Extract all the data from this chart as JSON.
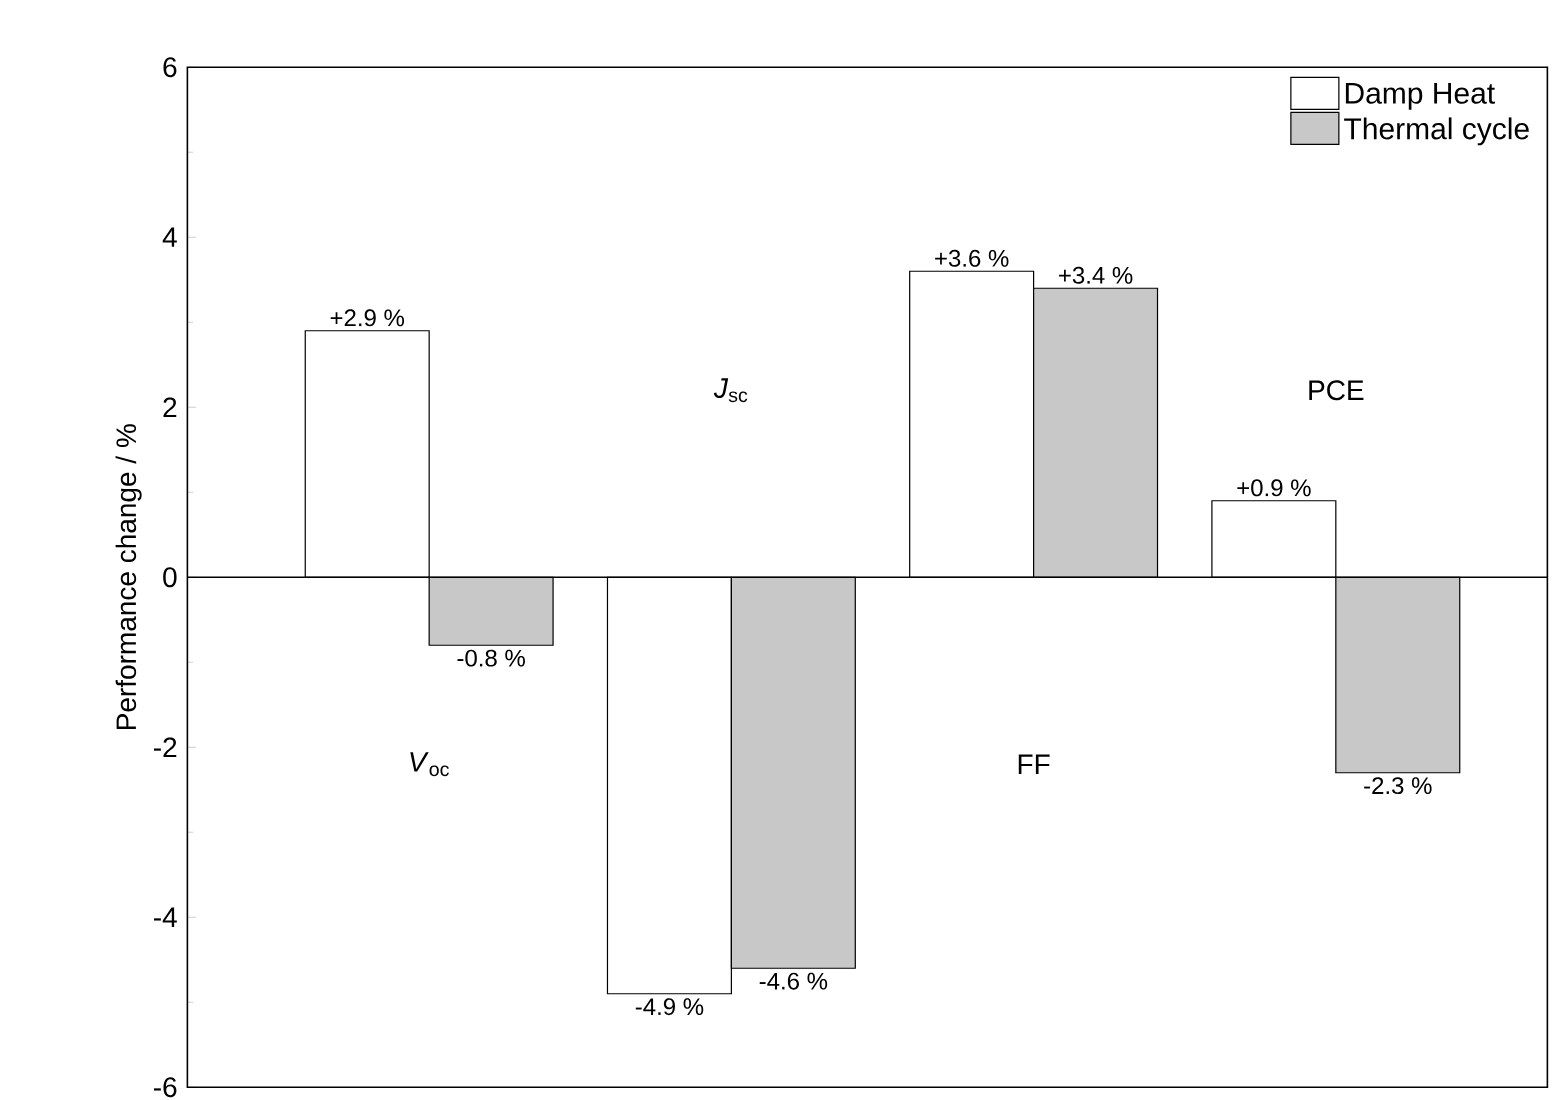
{
  "chart_data": {
    "type": "bar",
    "ylabel": "Performance change / %",
    "categories": [
      "*V*$_{oc}$",
      "*J*$_{sc}$",
      "FF",
      "PCE"
    ],
    "series": [
      {
        "name": "Damp Heat",
        "color": "#ffffff",
        "values": [
          2.9,
          -4.9,
          3.6,
          0.9
        ],
        "value_labels": [
          "+2.9 %",
          "-4.9 %",
          "+3.6 %",
          "+0.9 %"
        ]
      },
      {
        "name": "Thermal cycle",
        "color": "#c8c8c8",
        "values": [
          -0.8,
          -4.6,
          3.4,
          -2.3
        ],
        "value_labels": [
          "-0.8 %",
          "-4.6 %",
          "+3.4 %",
          "-2.3 %"
        ]
      }
    ],
    "ylim": [
      -6,
      6
    ],
    "yticks": [
      -6,
      -4,
      -2,
      0,
      2,
      4,
      6
    ],
    "legend": "top right",
    "grid": false,
    "ref_lines": [
      {
        "axis": "y",
        "value": 0
      }
    ]
  }
}
